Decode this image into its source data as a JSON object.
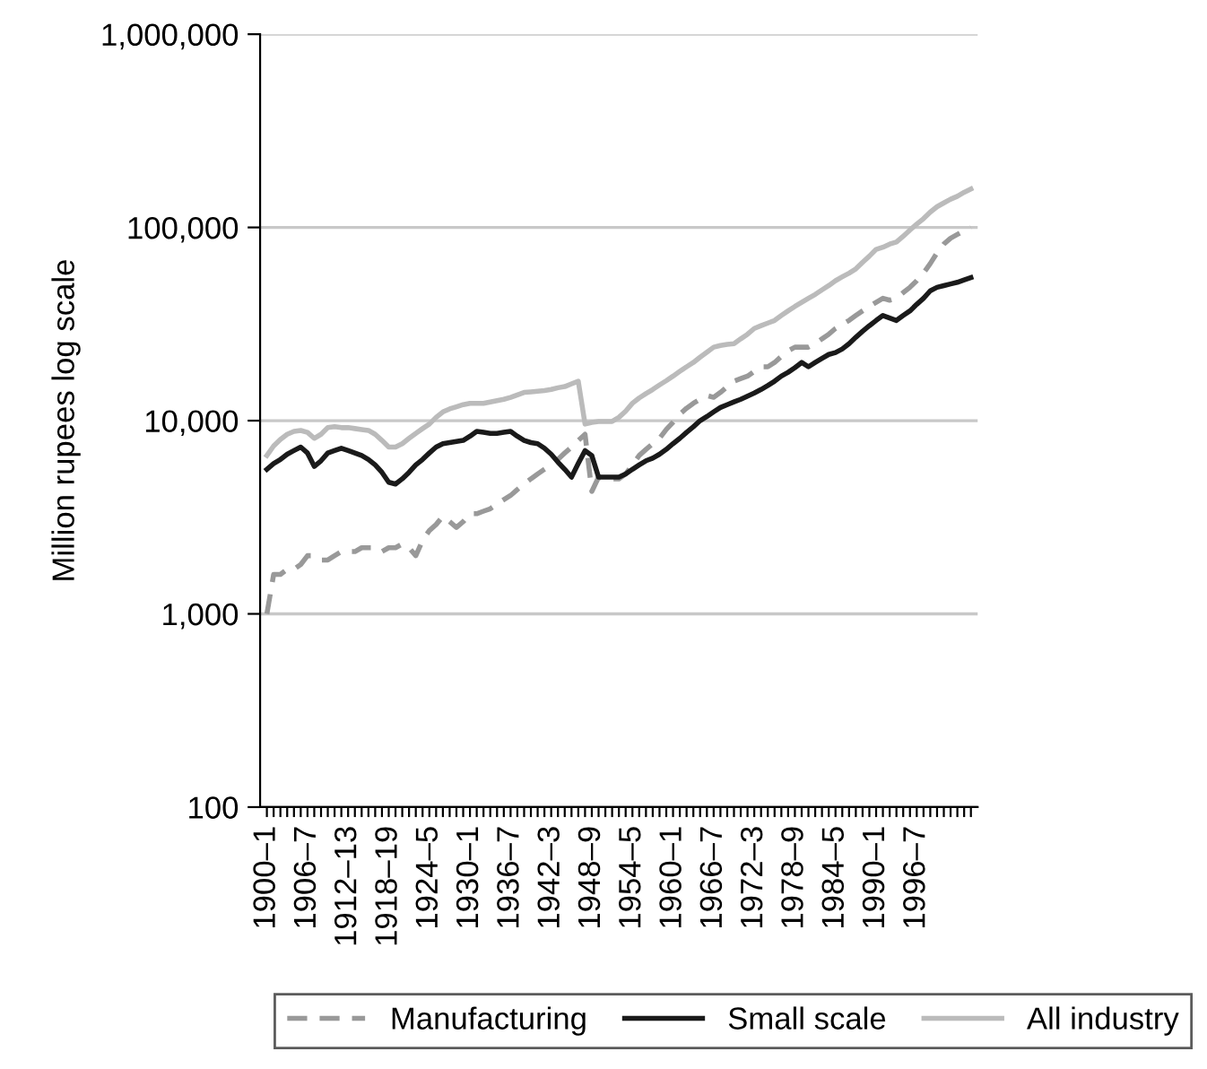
{
  "chart_data": {
    "type": "line",
    "ylabel": "Million rupees log scale",
    "log": "y",
    "grid": "y",
    "legend": "bottom",
    "marker": "none",
    "categories": [
      "1900–1",
      null,
      null,
      null,
      null,
      null,
      "1906–7",
      null,
      null,
      null,
      null,
      null,
      "1912–13",
      null,
      null,
      null,
      null,
      null,
      "1918–19",
      null,
      null,
      null,
      null,
      null,
      "1924–5",
      null,
      null,
      null,
      null,
      null,
      "1930–1",
      null,
      null,
      null,
      null,
      null,
      "1936–7",
      null,
      null,
      null,
      null,
      null,
      "1942–3",
      null,
      null,
      null,
      null,
      null,
      "1948–9",
      null,
      null,
      null,
      null,
      null,
      "1954–5",
      null,
      null,
      null,
      null,
      null,
      "1960–1",
      null,
      null,
      null,
      null,
      null,
      "1966–7",
      null,
      null,
      null,
      null,
      null,
      "1972–3",
      null,
      null,
      null,
      null,
      null,
      "1978–9",
      null,
      null,
      null,
      null,
      null,
      "1984–5",
      null,
      null,
      null,
      null,
      null,
      "1990–1",
      null,
      null,
      null,
      null,
      null,
      "1996–7",
      null,
      null,
      null,
      null,
      null,
      null,
      null,
      null
    ],
    "ylim": [
      100,
      1000000
    ],
    "yticks": [
      100,
      {
        "value": 1000,
        "label": "1,000"
      },
      {
        "value": 10000,
        "label": "10,000"
      },
      {
        "value": 100000,
        "label": "100,000"
      },
      {
        "value": 1000000,
        "label": "1,000,000"
      }
    ],
    "series": [
      {
        "name": "Manufacturing",
        "color": "#999999",
        "line_style": "dashed",
        "values": [
          1000,
          1600,
          1600,
          1700,
          1700,
          1800,
          2000,
          2000,
          1900,
          1900,
          2000,
          2100,
          2100,
          2100,
          2200,
          2200,
          2200,
          2100,
          2200,
          2200,
          2300,
          2200,
          2000,
          2400,
          2700,
          2900,
          3200,
          3000,
          2800,
          3000,
          3300,
          3300,
          3400,
          3500,
          3700,
          3900,
          4100,
          4400,
          4700,
          5000,
          5300,
          5600,
          5900,
          6300,
          6800,
          7300,
          7900,
          8500,
          4300,
          5100,
          5000,
          5000,
          5000,
          5300,
          5900,
          6600,
          7100,
          7600,
          8100,
          9000,
          9800,
          10800,
          11600,
          12300,
          12900,
          13500,
          13200,
          14000,
          15000,
          16000,
          16500,
          17000,
          18000,
          19000,
          19000,
          20000,
          21500,
          23000,
          24000,
          24000,
          24000,
          25000,
          26500,
          28000,
          30000,
          31500,
          33000,
          35000,
          37000,
          39000,
          41000,
          43000,
          42000,
          43000,
          46000,
          49000,
          53000,
          58000,
          65000,
          74000,
          82000,
          88000,
          92000,
          96000,
          100000
        ]
      },
      {
        "name": "Small scale",
        "color": "#1a1a1a",
        "line_style": "solid",
        "values": [
          5600,
          6000,
          6300,
          6700,
          7000,
          7300,
          6800,
          5800,
          6200,
          6800,
          7000,
          7200,
          7000,
          6800,
          6600,
          6300,
          5900,
          5400,
          4800,
          4700,
          5000,
          5400,
          5900,
          6300,
          6800,
          7300,
          7600,
          7700,
          7800,
          7900,
          8300,
          8800,
          8700,
          8600,
          8600,
          8700,
          8800,
          8300,
          7900,
          7700,
          7600,
          7200,
          6700,
          6100,
          5600,
          5100,
          6000,
          7000,
          6600,
          5100,
          5100,
          5100,
          5100,
          5300,
          5600,
          5900,
          6200,
          6400,
          6700,
          7100,
          7600,
          8100,
          8700,
          9300,
          10000,
          10500,
          11100,
          11700,
          12100,
          12500,
          12900,
          13400,
          13900,
          14500,
          15200,
          16000,
          17000,
          17800,
          18800,
          20000,
          19000,
          20000,
          21000,
          22000,
          22500,
          23500,
          25000,
          27000,
          29000,
          31000,
          33000,
          35000,
          34000,
          33000,
          35000,
          37000,
          40000,
          43000,
          47000,
          49000,
          50000,
          51000,
          52000,
          53500,
          55000
        ]
      },
      {
        "name": "All industry",
        "color": "#bbbbbb",
        "line_style": "solid",
        "values": [
          6600,
          7400,
          8000,
          8500,
          8800,
          8900,
          8700,
          8100,
          8500,
          9200,
          9300,
          9200,
          9200,
          9100,
          9000,
          8900,
          8500,
          7900,
          7300,
          7300,
          7600,
          8100,
          8600,
          9100,
          9600,
          10400,
          11100,
          11500,
          11800,
          12100,
          12300,
          12300,
          12300,
          12500,
          12700,
          12900,
          13200,
          13600,
          14000,
          14100,
          14200,
          14300,
          14500,
          14800,
          15000,
          15500,
          16000,
          9600,
          9800,
          9900,
          9900,
          9900,
          10400,
          11200,
          12300,
          13100,
          13800,
          14500,
          15300,
          16100,
          17000,
          18000,
          19000,
          20000,
          21300,
          22600,
          24000,
          24500,
          24800,
          25000,
          26500,
          28000,
          30000,
          31000,
          32000,
          33000,
          35000,
          37000,
          39000,
          41000,
          43000,
          45000,
          47500,
          50000,
          53000,
          55500,
          58000,
          61000,
          66000,
          71000,
          77000,
          79000,
          82000,
          84000,
          90000,
          97000,
          104000,
          111000,
          120000,
          128000,
          134000,
          140000,
          145000,
          152000,
          158000
        ]
      }
    ]
  }
}
